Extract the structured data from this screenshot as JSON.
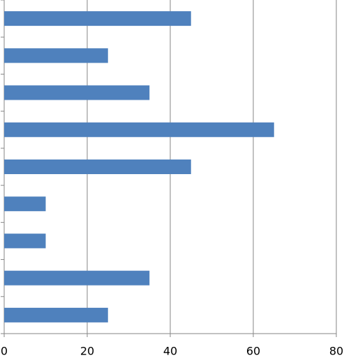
{
  "chart_data": {
    "type": "bar",
    "orientation": "horizontal",
    "categories": [
      null,
      null,
      null,
      null,
      null,
      null,
      null,
      null,
      null
    ],
    "values": [
      45,
      25,
      35,
      65,
      45,
      10,
      10,
      35,
      25
    ],
    "color": "#4f81bd",
    "xlim": [
      0,
      80
    ],
    "xticks": [
      0,
      20,
      40,
      60,
      80
    ],
    "grid": true
  }
}
